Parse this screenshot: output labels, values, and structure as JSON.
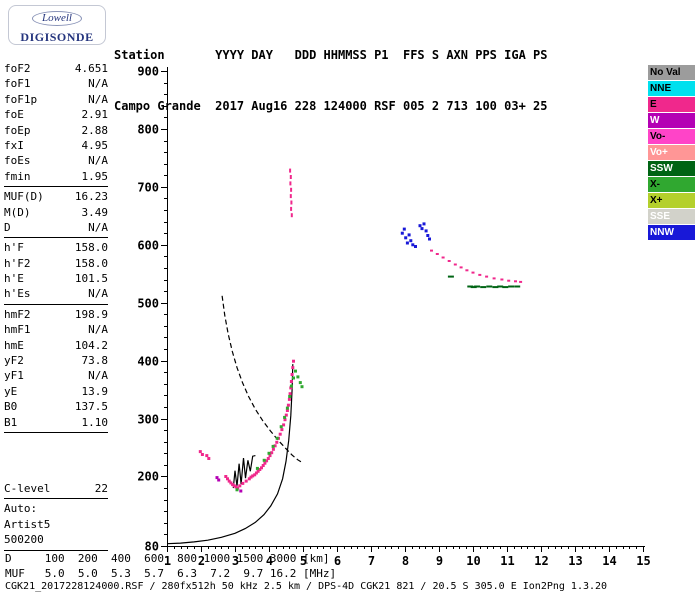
{
  "logo": {
    "line1": "Lowell",
    "line2": "DIGISONDE"
  },
  "header": {
    "line1": "Station       YYYY DAY   DDD HHMMSS P1  FFS S AXN PPS IGA PS",
    "line2": "Campo Grande  2017 Aug16 228 124000 RSF 005 2 713 100 03+ 25"
  },
  "params": {
    "groups": [
      {
        "gap_before": 0,
        "rule_after": true,
        "rows": [
          [
            "foF2",
            "4.651"
          ],
          [
            "foF1",
            "N/A"
          ],
          [
            "foF1p",
            "N/A"
          ],
          [
            "foE",
            "2.91"
          ],
          [
            "foEp",
            "2.88"
          ],
          [
            "fxI",
            "4.95"
          ],
          [
            "foEs",
            "N/A"
          ],
          [
            "fmin",
            "1.95"
          ]
        ]
      },
      {
        "gap_before": 0,
        "rule_after": true,
        "rows": [
          [
            "MUF(D)",
            "16.23"
          ],
          [
            "M(D)",
            "3.49"
          ],
          [
            "D",
            "N/A"
          ]
        ]
      },
      {
        "gap_before": 0,
        "rule_after": true,
        "rows": [
          [
            "h'F",
            "158.0"
          ],
          [
            "h'F2",
            "158.0"
          ],
          [
            "h'E",
            "101.5"
          ],
          [
            "h'Es",
            "N/A"
          ]
        ]
      },
      {
        "gap_before": 0,
        "rule_after": true,
        "rows": [
          [
            "hmF2",
            "198.9"
          ],
          [
            "hmF1",
            "N/A"
          ],
          [
            "hmE",
            "104.2"
          ],
          [
            "yF2",
            "73.8"
          ],
          [
            "yF1",
            "N/A"
          ],
          [
            "yE",
            "13.9"
          ],
          [
            "B0",
            "137.5"
          ],
          [
            "B1",
            "1.10"
          ]
        ]
      },
      {
        "gap_before": 46,
        "rule_after": true,
        "rows": [
          [
            "C-level",
            "22"
          ]
        ]
      },
      {
        "gap_before": 0,
        "rule_after": true,
        "rows": [
          [
            "Auto:",
            ""
          ],
          [
            "Artist5",
            ""
          ],
          [
            "500200",
            ""
          ]
        ]
      }
    ]
  },
  "legend": {
    "items": [
      {
        "label": "No Val",
        "bg": "#9C9C9C",
        "fg": "#000000"
      },
      {
        "label": "NNE",
        "bg": "#00E0EE",
        "fg": "#000000"
      },
      {
        "label": "E",
        "bg": "#F0288C",
        "fg": "#000000"
      },
      {
        "label": "W",
        "bg": "#B400B4",
        "fg": "#FFFFFF"
      },
      {
        "label": "Vo-",
        "bg": "#FF44C8",
        "fg": "#000000"
      },
      {
        "label": "Vo+",
        "bg": "#FF9696",
        "fg": "#FFFFFF"
      },
      {
        "label": "SSW",
        "bg": "#006414",
        "fg": "#FFFFFF"
      },
      {
        "label": "X-",
        "bg": "#30A830",
        "fg": "#000000"
      },
      {
        "label": "X+",
        "bg": "#B4D02C",
        "fg": "#000000"
      },
      {
        "label": "SSE",
        "bg": "#D2D2CA",
        "fg": "#FFFFFF"
      },
      {
        "label": "NNW",
        "bg": "#1818D8",
        "fg": "#FFFFFF"
      }
    ]
  },
  "dmuf": {
    "rows": [
      {
        "label": "D",
        "values": [
          "100",
          "200",
          "400",
          "600",
          "800",
          "1000",
          "1500",
          "3000"
        ],
        "unit": "[km]"
      },
      {
        "label": "MUF",
        "values": [
          "5.0",
          "5.0",
          "5.3",
          "5.7",
          "6.3",
          "7.2",
          "9.7",
          "16.2"
        ],
        "unit": "[MHz]"
      }
    ]
  },
  "footer": "CGK21_2017228124000.RSF / 280fx512h 50 kHz 2.5 km / DPS-4D CGK21 821 / 20.5 S 305.0 E Ion2Png 1.3.20",
  "chart_data": {
    "type": "scatter",
    "title": "Digisonde ionogram Campo Grande 2017 Aug16 124000",
    "xlabel": "[MHz]",
    "ylabel": "[km]",
    "x_axis": {
      "min": 1,
      "max": 15,
      "major_ticks": [
        1,
        2,
        3,
        4,
        5,
        6,
        7,
        8,
        9,
        10,
        11,
        12,
        13,
        14,
        15
      ],
      "minor_step": 0.2
    },
    "y_axis": {
      "min": 80,
      "max": 900,
      "major_ticks": [
        {
          "v": 900,
          "label": "900"
        },
        {
          "v": 800,
          "label": "800"
        },
        {
          "v": 700,
          "label": "700"
        },
        {
          "v": 600,
          "label": "600"
        },
        {
          "v": 500,
          "label": "500"
        },
        {
          "v": 400,
          "label": "400"
        },
        {
          "v": 300,
          "label": "300"
        },
        {
          "v": 200,
          "label": "200"
        },
        {
          "v": 80,
          "label": "80"
        }
      ],
      "minor_step": 20
    },
    "grid": false,
    "legend_position": "right",
    "series": [
      {
        "name": "f-trace-o",
        "direction": "E",
        "color": "#F0288C",
        "size": [
          3,
          3
        ],
        "points": [
          [
            3.42,
            196
          ],
          [
            3.47,
            199
          ],
          [
            3.52,
            201
          ],
          [
            3.58,
            203
          ],
          [
            3.63,
            206
          ],
          [
            3.68,
            209
          ],
          [
            3.73,
            212
          ],
          [
            3.78,
            215
          ],
          [
            3.83,
            219
          ],
          [
            3.88,
            223
          ],
          [
            3.93,
            227
          ],
          [
            3.98,
            231
          ],
          [
            4.03,
            236
          ],
          [
            4.08,
            241
          ],
          [
            4.13,
            247
          ],
          [
            4.18,
            253
          ],
          [
            4.23,
            259
          ],
          [
            4.28,
            266
          ],
          [
            4.33,
            273
          ],
          [
            4.38,
            281
          ],
          [
            4.43,
            289
          ],
          [
            4.47,
            298
          ],
          [
            4.51,
            306
          ],
          [
            4.54,
            314
          ],
          [
            4.57,
            323
          ],
          [
            4.6,
            333
          ],
          [
            4.62,
            343
          ],
          [
            4.64,
            353
          ],
          [
            4.66,
            364
          ],
          [
            4.68,
            376
          ],
          [
            4.7,
            388
          ],
          [
            4.72,
            399
          ]
        ]
      },
      {
        "name": "e-region-trace",
        "direction": "E",
        "color": "#F0288C",
        "size": [
          3,
          3
        ],
        "points": [
          [
            1.98,
            243
          ],
          [
            2.04,
            238
          ],
          [
            2.17,
            236
          ],
          [
            2.23,
            231
          ],
          [
            2.73,
            200
          ],
          [
            2.78,
            196
          ],
          [
            2.83,
            192
          ],
          [
            2.88,
            189
          ],
          [
            2.93,
            186
          ],
          [
            2.98,
            184
          ],
          [
            3.03,
            182
          ],
          [
            3.08,
            180
          ],
          [
            3.14,
            184
          ],
          [
            3.23,
            188
          ],
          [
            3.33,
            192
          ]
        ]
      },
      {
        "name": "f-spread-vertical",
        "direction": "E",
        "color": "#F0288C",
        "size": [
          2,
          4
        ],
        "points": [
          [
            4.62,
            728
          ],
          [
            4.64,
            717
          ],
          [
            4.63,
            706
          ],
          [
            4.65,
            695
          ],
          [
            4.64,
            684
          ],
          [
            4.66,
            673
          ],
          [
            4.65,
            662
          ],
          [
            4.67,
            651
          ]
        ]
      },
      {
        "name": "second-hop-trace",
        "direction": "E",
        "color": "#F0288C",
        "size": [
          3,
          2
        ],
        "points": [
          [
            8.78,
            590
          ],
          [
            8.95,
            584
          ],
          [
            9.12,
            578
          ],
          [
            9.3,
            572
          ],
          [
            9.48,
            566
          ],
          [
            9.65,
            561
          ],
          [
            9.82,
            556
          ],
          [
            10.0,
            552
          ],
          [
            10.2,
            548
          ],
          [
            10.4,
            545
          ],
          [
            10.62,
            542
          ],
          [
            10.85,
            540
          ],
          [
            11.05,
            538
          ],
          [
            11.25,
            537
          ],
          [
            11.4,
            536
          ]
        ]
      },
      {
        "name": "second-hop-nnw",
        "direction": "NNW",
        "color": "#1818D8",
        "size": [
          3,
          3
        ],
        "points": [
          [
            7.92,
            620
          ],
          [
            7.98,
            627
          ],
          [
            8.02,
            612
          ],
          [
            8.07,
            603
          ],
          [
            8.12,
            617
          ],
          [
            8.17,
            607
          ],
          [
            8.23,
            600
          ],
          [
            8.31,
            597
          ],
          [
            8.44,
            633
          ],
          [
            8.5,
            628
          ],
          [
            8.56,
            636
          ],
          [
            8.62,
            624
          ],
          [
            8.67,
            616
          ],
          [
            8.72,
            610
          ]
        ]
      },
      {
        "name": "x-trace",
        "direction": "X-",
        "color": "#30A830",
        "size": [
          3,
          3
        ],
        "points": [
          [
            3.06,
            177
          ],
          [
            3.66,
            214
          ],
          [
            3.86,
            228
          ],
          [
            4.0,
            240
          ],
          [
            4.12,
            252
          ],
          [
            4.24,
            266
          ],
          [
            4.36,
            286
          ],
          [
            4.46,
            302
          ],
          [
            4.54,
            318
          ],
          [
            4.61,
            338
          ],
          [
            4.66,
            356
          ],
          [
            4.72,
            370
          ],
          [
            4.78,
            382
          ],
          [
            4.85,
            372
          ],
          [
            4.92,
            362
          ],
          [
            4.97,
            355
          ]
        ]
      },
      {
        "name": "second-hop-x",
        "direction": "SSW",
        "color": "#006414",
        "size": [
          6,
          2
        ],
        "points": [
          [
            9.35,
            545
          ],
          [
            9.92,
            528
          ],
          [
            10.02,
            527
          ],
          [
            10.12,
            528
          ],
          [
            10.3,
            527
          ],
          [
            10.48,
            528
          ],
          [
            10.66,
            527
          ],
          [
            10.8,
            528
          ],
          [
            10.95,
            527
          ],
          [
            11.12,
            528
          ],
          [
            11.3,
            528
          ]
        ]
      },
      {
        "name": "w-echoes",
        "direction": "W",
        "color": "#B400B4",
        "size": [
          3,
          3
        ],
        "points": [
          [
            2.47,
            198
          ],
          [
            2.52,
            194
          ],
          [
            3.17,
            175
          ]
        ]
      }
    ],
    "curves": [
      {
        "name": "true-height-profile",
        "style": "solid",
        "points": [
          [
            1.0,
            84
          ],
          [
            1.4,
            85
          ],
          [
            1.8,
            87
          ],
          [
            2.2,
            90
          ],
          [
            2.6,
            95
          ],
          [
            3.0,
            102
          ],
          [
            3.3,
            110
          ],
          [
            3.6,
            121
          ],
          [
            3.85,
            134
          ],
          [
            4.05,
            149
          ],
          [
            4.25,
            170
          ],
          [
            4.4,
            196
          ],
          [
            4.5,
            226
          ],
          [
            4.58,
            262
          ],
          [
            4.64,
            305
          ],
          [
            4.68,
            350
          ],
          [
            4.7,
            394
          ]
        ]
      },
      {
        "name": "h-trace-zigzag",
        "style": "solid",
        "points": [
          [
            2.95,
            180
          ],
          [
            3.0,
            210
          ],
          [
            3.06,
            183
          ],
          [
            3.12,
            222
          ],
          [
            3.18,
            187
          ],
          [
            3.25,
            232
          ],
          [
            3.31,
            197
          ],
          [
            3.38,
            228
          ],
          [
            3.45,
            209
          ],
          [
            3.52,
            235
          ],
          [
            3.6,
            236
          ]
        ]
      },
      {
        "name": "muf-transmission-curve",
        "style": "dashed",
        "points": [
          [
            2.62,
            512
          ],
          [
            2.7,
            478
          ],
          [
            2.8,
            446
          ],
          [
            2.92,
            416
          ],
          [
            3.06,
            388
          ],
          [
            3.22,
            362
          ],
          [
            3.4,
            338
          ],
          [
            3.6,
            316
          ],
          [
            3.82,
            296
          ],
          [
            4.05,
            278
          ],
          [
            4.28,
            262
          ],
          [
            4.5,
            248
          ],
          [
            4.68,
            237
          ],
          [
            4.84,
            229
          ],
          [
            4.95,
            225
          ]
        ]
      }
    ]
  }
}
